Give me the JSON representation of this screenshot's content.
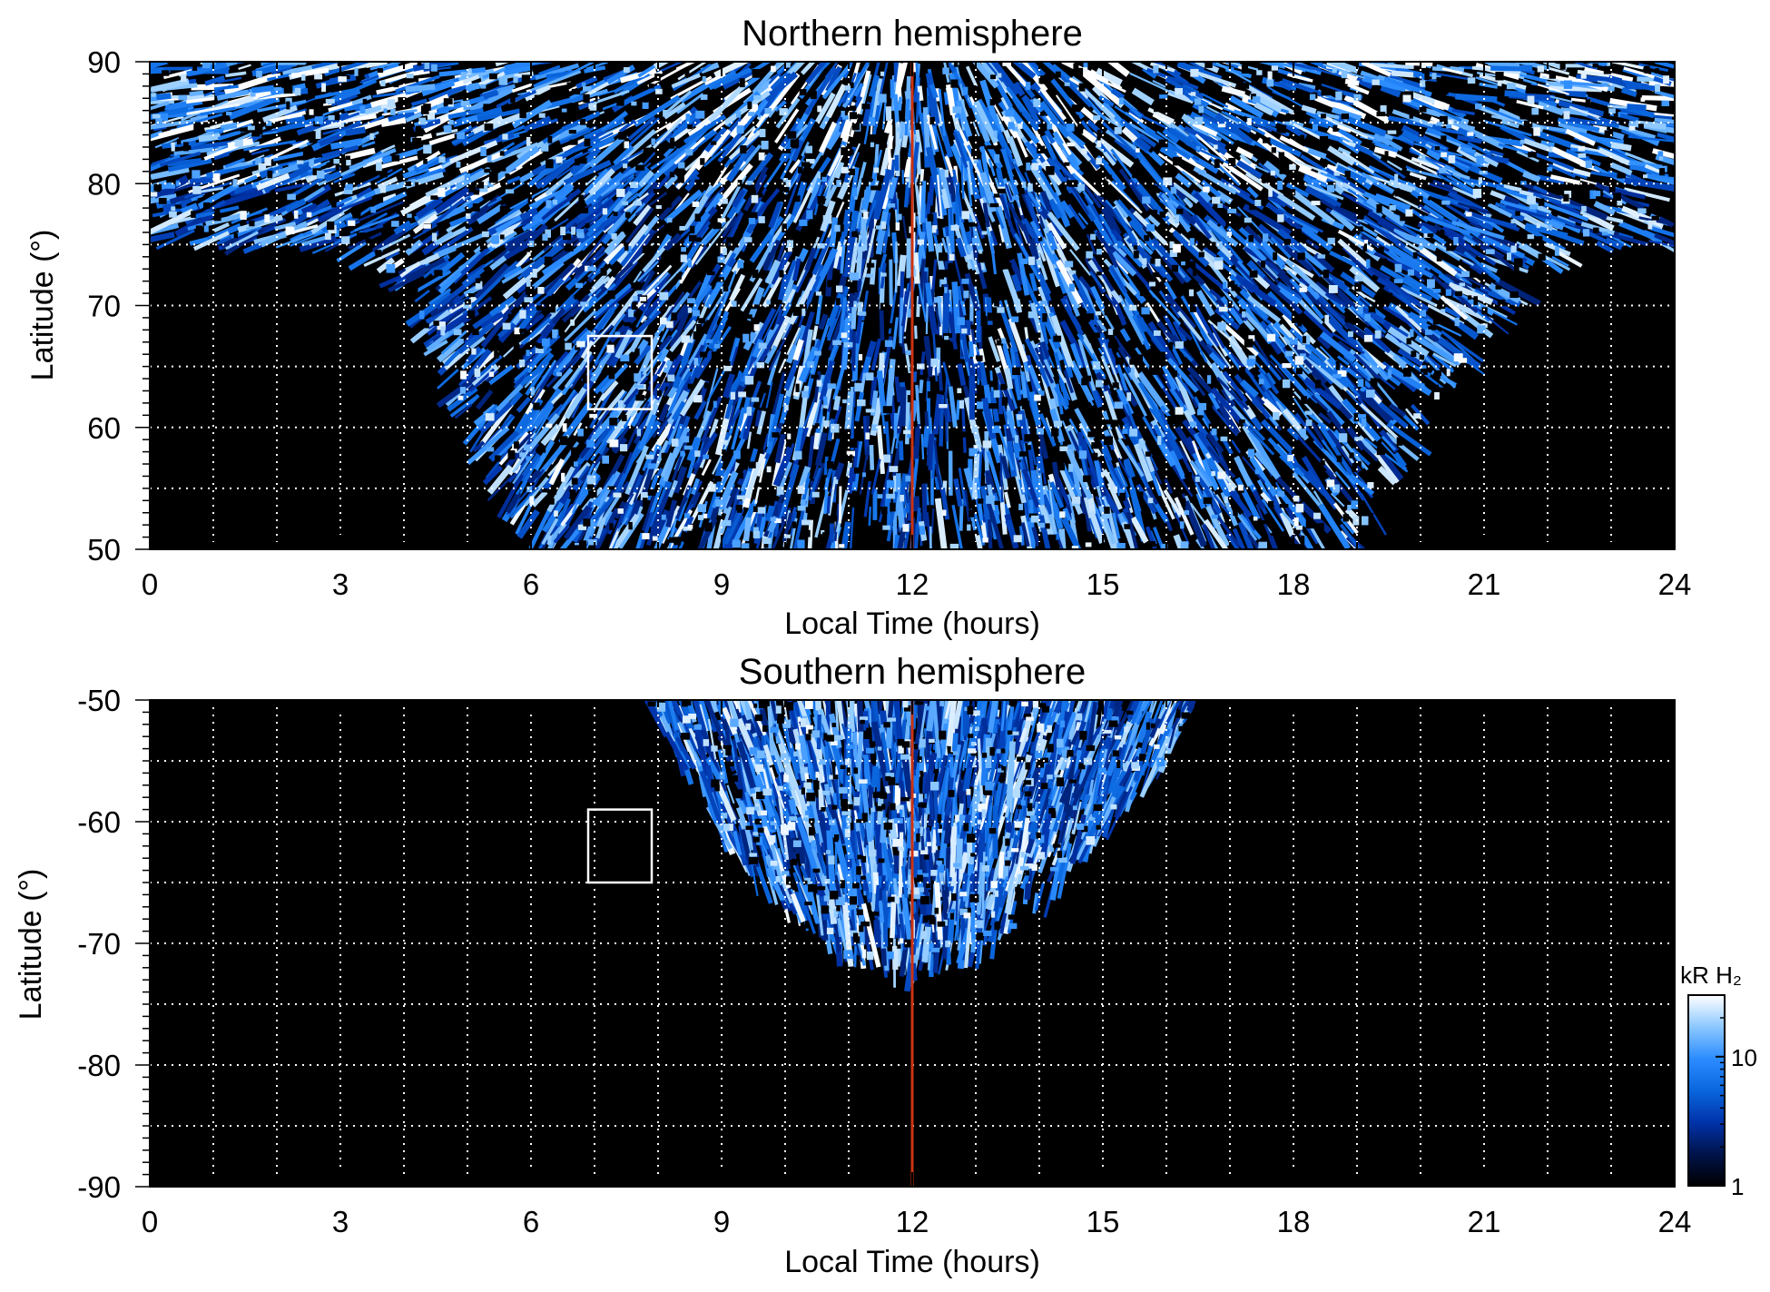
{
  "chart_data": [
    {
      "type": "heatmap",
      "title": "Northern hemisphere",
      "xlabel": "Local Time (hours)",
      "ylabel": "Latitude (°)",
      "xlim": [
        0,
        24
      ],
      "ylim": [
        50,
        90
      ],
      "xticks": [
        "0",
        "3",
        "6",
        "9",
        "12",
        "15",
        "18",
        "21",
        "24"
      ],
      "yticks": [
        "50",
        "60",
        "70",
        "80",
        "90"
      ],
      "grid_x": [
        1,
        2,
        3,
        4,
        5,
        6,
        7,
        8,
        9,
        10,
        11,
        12,
        13,
        14,
        15,
        16,
        17,
        18,
        19,
        20,
        21,
        22,
        23
      ],
      "grid_y": [
        55,
        60,
        65,
        70,
        75,
        80,
        85
      ],
      "grid": true,
      "coverage_min_latitude_by_local_time": {
        "local_time": [
          0,
          3,
          4,
          5,
          6,
          7,
          8,
          9,
          10,
          11,
          12,
          13,
          14,
          15,
          16,
          17,
          18,
          19,
          20,
          21,
          22,
          23,
          24
        ],
        "min_latitude": [
          75,
          75,
          72,
          60,
          50,
          50,
          50,
          50,
          50,
          50,
          50,
          50,
          50,
          50,
          50,
          50,
          50,
          50,
          60,
          68,
          73,
          75,
          75
        ]
      },
      "noon_line": {
        "local_time": 12,
        "color": "#cc3311"
      },
      "box": {
        "local_time": [
          6.9,
          7.9
        ],
        "latitude": [
          61.5,
          67.5
        ],
        "color": "#ffffff"
      }
    },
    {
      "type": "heatmap",
      "title": "Southern hemisphere",
      "xlabel": "Local Time (hours)",
      "ylabel": "Latitude (°)",
      "xlim": [
        0,
        24
      ],
      "ylim": [
        -90,
        -50
      ],
      "xticks": [
        "0",
        "3",
        "6",
        "9",
        "12",
        "15",
        "18",
        "21",
        "24"
      ],
      "yticks": [
        "-50",
        "-60",
        "-70",
        "-80",
        "-90"
      ],
      "grid_x": [
        1,
        2,
        3,
        4,
        5,
        6,
        7,
        8,
        9,
        10,
        11,
        12,
        13,
        14,
        15,
        16,
        17,
        18,
        19,
        20,
        21,
        22,
        23
      ],
      "grid_y": [
        -55,
        -60,
        -65,
        -70,
        -75,
        -80,
        -85
      ],
      "grid": true,
      "coverage_max_latitude_by_local_time": {
        "local_time": [
          7.8,
          8.5,
          9,
          10,
          11,
          12,
          13,
          14,
          15,
          16,
          16.5
        ],
        "max_latitude": [
          -50,
          -56,
          -61,
          -67,
          -71,
          -72,
          -71,
          -67,
          -61,
          -55,
          -50
        ]
      },
      "noon_line": {
        "local_time": 12,
        "color": "#cc3311"
      },
      "box": {
        "local_time": [
          6.9,
          7.9
        ],
        "latitude": [
          -65,
          -59
        ],
        "color": "#ffffff"
      }
    }
  ],
  "colorbar": {
    "label": "kR H₂",
    "scale": "log",
    "range": [
      1,
      30
    ],
    "ticks": [
      "1",
      "10"
    ],
    "colors": [
      "#000000",
      "#00134a",
      "#0033aa",
      "#0a66dd",
      "#2b8cff",
      "#8cc8ff",
      "#ffffff"
    ]
  }
}
